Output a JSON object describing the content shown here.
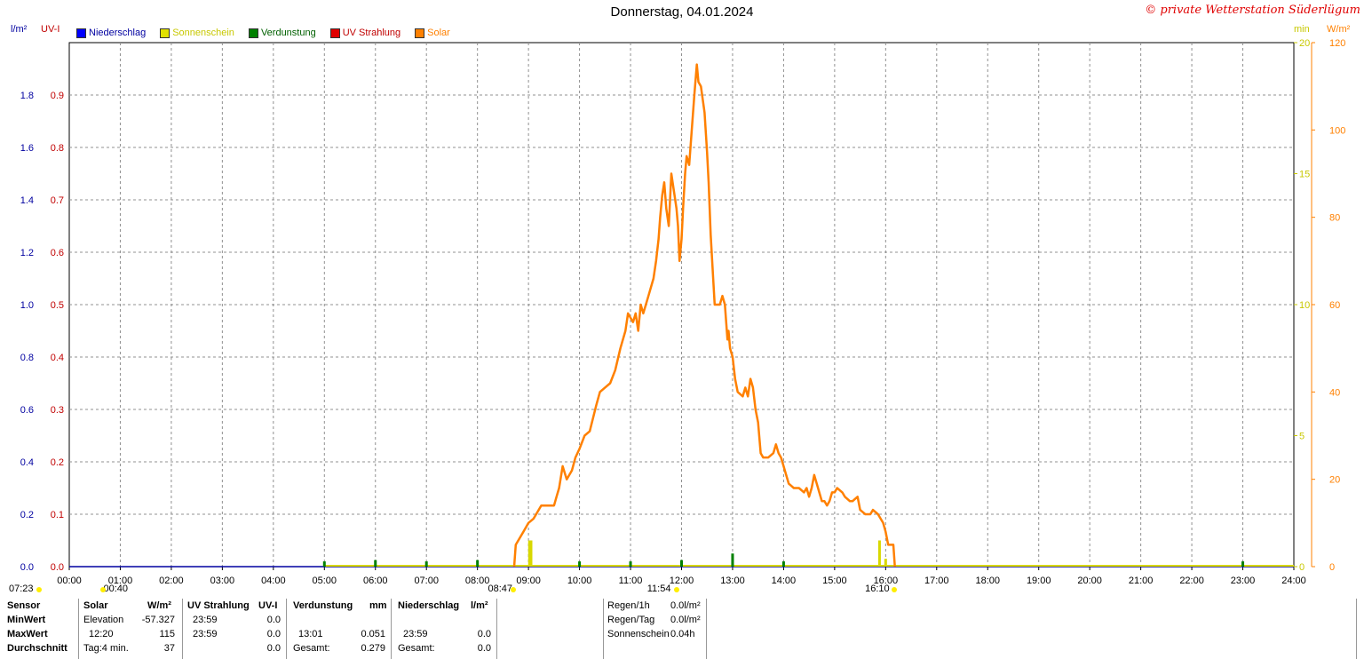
{
  "header": {
    "title": "Donnerstag, 04.01.2024",
    "copyright": "© private Wetterstation Süderlügum",
    "unit_left1": "l/m²",
    "unit_left2": "UV-I",
    "unit_right1": "min",
    "unit_right2": "W/m²"
  },
  "legend": [
    {
      "label": "Niederschlag",
      "color": "#0000ff"
    },
    {
      "label": "Sonnenschein",
      "color": "#e0e000"
    },
    {
      "label": "Verdunstung",
      "color": "#008000"
    },
    {
      "label": "UV Strahlung",
      "color": "#e00000"
    },
    {
      "label": "Solar",
      "color": "#ff8000"
    }
  ],
  "colors": {
    "precip_axis": "#0000a0",
    "uv_axis": "#c00000",
    "sun_axis": "#c8c800",
    "solar_axis": "#ff8000",
    "solar_line": "#ff8000",
    "precip_line": "#0000a0",
    "evap_bar": "#008000",
    "sun_bar": "#d8d800"
  },
  "chart_data": {
    "type": "line",
    "title": "Donnerstag, 04.01.2024",
    "x_ticks": [
      "00:00",
      "01:00",
      "02:00",
      "03:00",
      "04:00",
      "05:00",
      "06:00",
      "07:00",
      "08:00",
      "09:00",
      "10:00",
      "11:00",
      "12:00",
      "13:00",
      "14:00",
      "15:00",
      "16:00",
      "17:00",
      "18:00",
      "19:00",
      "20:00",
      "21:00",
      "22:00",
      "23:00",
      "24:00"
    ],
    "axes": {
      "precip": {
        "unit": "l/m²",
        "range": [
          0,
          2.0
        ],
        "ticks": [
          "0.0",
          "0.2",
          "0.4",
          "0.6",
          "0.8",
          "1.0",
          "1.2",
          "1.4",
          "1.6",
          "1.8"
        ]
      },
      "uv": {
        "unit": "UV-I",
        "range": [
          0,
          1.0
        ],
        "ticks": [
          "0.0",
          "0.1",
          "0.2",
          "0.3",
          "0.4",
          "0.5",
          "0.6",
          "0.7",
          "0.8",
          "0.9"
        ]
      },
      "sunshine": {
        "unit": "min",
        "range": [
          0,
          20
        ],
        "ticks": [
          "0",
          "5",
          "10",
          "15",
          "20"
        ]
      },
      "solar": {
        "unit": "W/m²",
        "range": [
          0,
          120
        ],
        "ticks": [
          "0",
          "20",
          "40",
          "60",
          "80",
          "100",
          "120"
        ]
      }
    },
    "grid": true,
    "series": [
      {
        "name": "Solar",
        "axis": "solar",
        "points": [
          [
            8.72,
            0
          ],
          [
            8.75,
            5
          ],
          [
            8.9,
            8
          ],
          [
            9.0,
            10
          ],
          [
            9.1,
            11
          ],
          [
            9.25,
            14
          ],
          [
            9.5,
            14
          ],
          [
            9.55,
            16
          ],
          [
            9.6,
            18
          ],
          [
            9.67,
            23
          ],
          [
            9.75,
            20
          ],
          [
            9.85,
            22
          ],
          [
            9.92,
            25
          ],
          [
            10.0,
            27
          ],
          [
            10.1,
            30
          ],
          [
            10.2,
            31
          ],
          [
            10.33,
            37
          ],
          [
            10.4,
            40
          ],
          [
            10.5,
            41
          ],
          [
            10.6,
            42
          ],
          [
            10.7,
            45
          ],
          [
            10.8,
            50
          ],
          [
            10.9,
            54
          ],
          [
            10.95,
            58
          ],
          [
            11.0,
            57
          ],
          [
            11.05,
            56
          ],
          [
            11.1,
            58
          ],
          [
            11.15,
            54
          ],
          [
            11.2,
            60
          ],
          [
            11.25,
            58
          ],
          [
            11.35,
            62
          ],
          [
            11.45,
            66
          ],
          [
            11.5,
            70
          ],
          [
            11.55,
            75
          ],
          [
            11.58,
            80
          ],
          [
            11.62,
            85
          ],
          [
            11.66,
            88
          ],
          [
            11.7,
            82
          ],
          [
            11.75,
            78
          ],
          [
            11.8,
            90
          ],
          [
            11.85,
            86
          ],
          [
            11.9,
            82
          ],
          [
            11.93,
            78
          ],
          [
            11.96,
            70
          ],
          [
            12.0,
            75
          ],
          [
            12.03,
            82
          ],
          [
            12.07,
            90
          ],
          [
            12.1,
            94
          ],
          [
            12.15,
            92
          ],
          [
            12.2,
            100
          ],
          [
            12.25,
            108
          ],
          [
            12.3,
            115
          ],
          [
            12.33,
            111
          ],
          [
            12.38,
            110
          ],
          [
            12.45,
            104
          ],
          [
            12.5,
            95
          ],
          [
            12.53,
            88
          ],
          [
            12.57,
            76
          ],
          [
            12.62,
            66
          ],
          [
            12.65,
            60
          ],
          [
            12.7,
            60
          ],
          [
            12.75,
            60
          ],
          [
            12.8,
            62
          ],
          [
            12.85,
            60
          ],
          [
            12.9,
            52
          ],
          [
            12.92,
            54
          ],
          [
            12.95,
            50
          ],
          [
            13.0,
            48
          ],
          [
            13.05,
            43
          ],
          [
            13.1,
            40
          ],
          [
            13.2,
            39
          ],
          [
            13.25,
            41
          ],
          [
            13.3,
            39
          ],
          [
            13.35,
            43
          ],
          [
            13.4,
            41
          ],
          [
            13.45,
            36
          ],
          [
            13.5,
            33
          ],
          [
            13.55,
            26
          ],
          [
            13.6,
            25
          ],
          [
            13.7,
            25
          ],
          [
            13.8,
            26
          ],
          [
            13.85,
            28
          ],
          [
            13.9,
            26
          ],
          [
            13.95,
            25
          ],
          [
            14.0,
            23
          ],
          [
            14.1,
            19
          ],
          [
            14.2,
            18
          ],
          [
            14.3,
            18
          ],
          [
            14.4,
            17
          ],
          [
            14.45,
            18
          ],
          [
            14.5,
            16
          ],
          [
            14.55,
            18
          ],
          [
            14.6,
            21
          ],
          [
            14.7,
            17
          ],
          [
            14.75,
            15
          ],
          [
            14.8,
            15
          ],
          [
            14.85,
            14
          ],
          [
            14.9,
            15
          ],
          [
            14.95,
            17
          ],
          [
            15.0,
            17
          ],
          [
            15.05,
            18
          ],
          [
            15.15,
            17
          ],
          [
            15.2,
            16
          ],
          [
            15.3,
            15
          ],
          [
            15.35,
            15
          ],
          [
            15.45,
            16
          ],
          [
            15.5,
            13
          ],
          [
            15.6,
            12
          ],
          [
            15.7,
            12
          ],
          [
            15.75,
            13
          ],
          [
            15.85,
            12
          ],
          [
            15.95,
            10
          ],
          [
            16.0,
            8
          ],
          [
            16.05,
            5
          ],
          [
            16.15,
            5
          ],
          [
            16.18,
            0
          ]
        ]
      },
      {
        "name": "Niederschlag",
        "axis": "precip",
        "points": [
          [
            0,
            0
          ],
          [
            24,
            0
          ]
        ]
      },
      {
        "name": "Sonnenschein",
        "axis": "sunshine",
        "bars": [
          [
            9.02,
            1
          ],
          [
            9.05,
            1
          ],
          [
            15.88,
            1
          ],
          [
            16.0,
            0.3
          ]
        ]
      },
      {
        "name": "Verdunstung",
        "axis": "precip",
        "bars": [
          [
            5.0,
            0.02
          ],
          [
            6.0,
            0.025
          ],
          [
            7.0,
            0.02
          ],
          [
            8.0,
            0.025
          ],
          [
            10.0,
            0.02
          ],
          [
            11.0,
            0.02
          ],
          [
            12.0,
            0.025
          ],
          [
            13.0,
            0.05
          ],
          [
            14.0,
            0.02
          ],
          [
            23.0,
            0.02
          ]
        ]
      }
    ],
    "markers": [
      {
        "label": "07:23",
        "x": 0
      },
      {
        "label": "00:40",
        "x": 0.67
      },
      {
        "label": "08:47",
        "x": 8.78
      },
      {
        "label": "11:54",
        "x": 11.9
      },
      {
        "label": "16:10",
        "x": 16.17
      }
    ]
  },
  "stats": {
    "sensor": {
      "header": "Sensor",
      "min": "MinWert",
      "max": "MaxWert",
      "avg": "Durchschnitt"
    },
    "solar": {
      "header": "Solar",
      "unit": "W/m²",
      "min_label": "Elevation",
      "min_value": "-57.327",
      "max_time": "12:20",
      "max_value": "115",
      "avg_label": "Tag:4 min.",
      "avg_value": "37"
    },
    "uv": {
      "header": "UV Strahlung",
      "unit": "UV-I",
      "min_time": "23:59",
      "min_value": "0.0",
      "max_time": "23:59",
      "max_value": "0.0",
      "avg_value": "0.0"
    },
    "evap": {
      "header": "Verdunstung",
      "unit": "mm",
      "max_time": "13:01",
      "max_value": "0.051",
      "total_label": "Gesamt:",
      "total_value": "0.279"
    },
    "precip": {
      "header": "Niederschlag",
      "unit": "l/m²",
      "max_time": "23:59",
      "max_value": "0.0",
      "total_label": "Gesamt:",
      "total_value": "0.0"
    },
    "rain": {
      "rate_label": "Regen/1h",
      "rate_value": "0.0l/m²",
      "day_label": "Regen/Tag",
      "day_value": "0.0l/m²",
      "sun_label": "Sonnenschein",
      "sun_value": "0.04h"
    }
  }
}
